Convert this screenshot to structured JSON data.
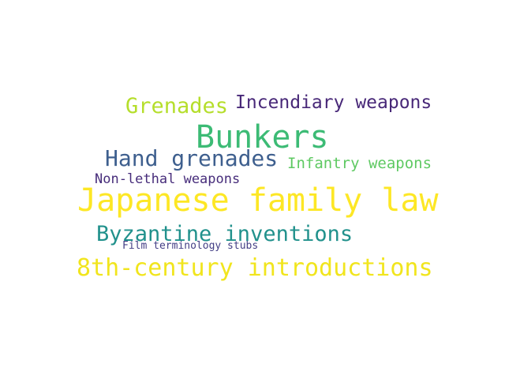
{
  "words": [
    {
      "text": "Japanese family law",
      "color": "#fde725"
    },
    {
      "text": "Bunkers",
      "color": "#3cbb75"
    },
    {
      "text": "Grenades",
      "color": "#b5de2b"
    },
    {
      "text": "Incendiary weapons",
      "color": "#482878"
    },
    {
      "text": "Hand grenades",
      "color": "#3e5f8e"
    },
    {
      "text": "Infantry weapons",
      "color": "#5ec962"
    },
    {
      "text": "Non-lethal weapons",
      "color": "#472d7b"
    },
    {
      "text": "Byzantine inventions",
      "color": "#21918c"
    },
    {
      "text": "Film terminology stubs",
      "color": "#433e85"
    },
    {
      "text": "8th-century introductions",
      "color": "#f1e51d"
    }
  ]
}
